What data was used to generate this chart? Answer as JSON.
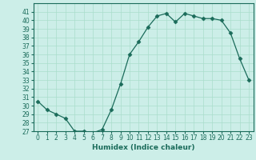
{
  "x": [
    0,
    1,
    2,
    3,
    4,
    5,
    6,
    7,
    8,
    9,
    10,
    11,
    12,
    13,
    14,
    15,
    16,
    17,
    18,
    19,
    20,
    21,
    22,
    23
  ],
  "y": [
    30.5,
    29.5,
    29.0,
    28.5,
    27.0,
    27.0,
    26.8,
    27.2,
    29.5,
    32.5,
    36.0,
    37.5,
    39.2,
    40.5,
    40.8,
    39.8,
    40.8,
    40.5,
    40.2,
    40.2,
    40.0,
    38.5,
    35.5,
    33.0
  ],
  "line_color": "#1a6b5a",
  "marker": "D",
  "marker_size": 2.5,
  "bg_color": "#cceee8",
  "grid_color": "#aaddcc",
  "xlabel": "Humidex (Indice chaleur)",
  "ylim": [
    27,
    42
  ],
  "xlim": [
    -0.5,
    23.5
  ],
  "yticks": [
    27,
    28,
    29,
    30,
    31,
    32,
    33,
    34,
    35,
    36,
    37,
    38,
    39,
    40,
    41
  ],
  "xticks": [
    0,
    1,
    2,
    3,
    4,
    5,
    6,
    7,
    8,
    9,
    10,
    11,
    12,
    13,
    14,
    15,
    16,
    17,
    18,
    19,
    20,
    21,
    22,
    23
  ],
  "label_fontsize": 6.5,
  "tick_fontsize": 5.5
}
